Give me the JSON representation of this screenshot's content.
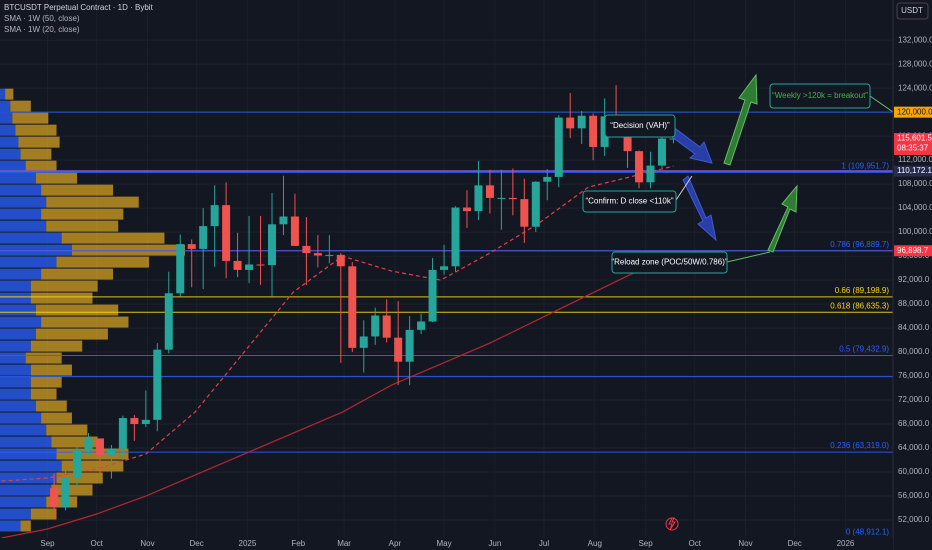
{
  "chart_data": {
    "type": "candlestick",
    "title": "BTCUSDT Perpetual Contract · 1D · Bybit",
    "currency": "USDT",
    "x": [
      4,
      11,
      18,
      25,
      32,
      39,
      46,
      53,
      60,
      67,
      74,
      81,
      88,
      95,
      102,
      109,
      116,
      123,
      130,
      137,
      144,
      151,
      158,
      165,
      172,
      179,
      186,
      193,
      200,
      207,
      214,
      221,
      228,
      235,
      242,
      249,
      256,
      263,
      270,
      277,
      284,
      291,
      298,
      305,
      312,
      319,
      326,
      333,
      340,
      347,
      354,
      361,
      368,
      375,
      382
    ],
    "open": [
      57300,
      54150,
      59100,
      63600,
      65600,
      62800,
      63900,
      69000,
      68000,
      68700,
      80400,
      89800,
      98000,
      97200,
      101000,
      104500,
      95200,
      93700,
      94600,
      94500,
      101300,
      102600,
      97700,
      96500,
      96100,
      96200,
      94300,
      80700,
      82600,
      86100,
      82400,
      78400,
      83700,
      85100,
      93700,
      94300,
      104100,
      103500,
      107800,
      105700,
      105700,
      105500,
      100900,
      108400,
      109200,
      119100,
      117300,
      119400,
      114200,
      119300,
      117400,
      113500,
      108300,
      111100,
      115600
    ],
    "high": [
      59800,
      60600,
      64100,
      66500,
      65600,
      64500,
      69400,
      69500,
      73600,
      81500,
      93400,
      99600,
      98800,
      104000,
      107800,
      108300,
      99900,
      102700,
      102700,
      106500,
      109400,
      106400,
      102500,
      99500,
      99500,
      96500,
      95000,
      85300,
      87400,
      88800,
      88500,
      86000,
      86400,
      95700,
      97900,
      104300,
      107000,
      111900,
      110400,
      110400,
      110600,
      108900,
      108500,
      110500,
      119500,
      123200,
      120200,
      119800,
      122300,
      124500,
      117600,
      113600,
      113400,
      116800,
      116000
    ],
    "low": [
      52550,
      53600,
      57500,
      62700,
      59800,
      58900,
      62000,
      65200,
      67500,
      66800,
      79800,
      89300,
      90800,
      90500,
      94200,
      92300,
      92500,
      91500,
      91200,
      89300,
      99500,
      97700,
      91200,
      94100,
      94800,
      78200,
      80000,
      76600,
      81200,
      81600,
      74500,
      74500,
      83000,
      85000,
      92900,
      93400,
      100700,
      102000,
      103100,
      100400,
      102800,
      98200,
      100000,
      105300,
      107500,
      115700,
      114700,
      112000,
      112700,
      116800,
      110700,
      107300,
      107300,
      110700,
      114800
    ],
    "close": [
      54150,
      59100,
      63600,
      65600,
      62800,
      63900,
      69000,
      68000,
      68700,
      80400,
      89800,
      98000,
      97200,
      101000,
      104500,
      95200,
      93700,
      94600,
      94500,
      101300,
      102600,
      97700,
      96500,
      96100,
      96200,
      94300,
      80700,
      82600,
      86100,
      82400,
      78400,
      83700,
      85100,
      93700,
      94300,
      104100,
      103500,
      107800,
      105700,
      105700,
      105500,
      100900,
      108400,
      109200,
      119100,
      117300,
      119400,
      114200,
      119300,
      117400,
      113500,
      108300,
      111100,
      115600,
      115601.5
    ],
    "up_color": "#26a69a",
    "down_color": "#ef5350",
    "indicators": [
      {
        "name": "SMA · 1W (50, close)",
        "color": "#b22833",
        "dash": false,
        "x": [
          -28,
          0,
          30,
          60,
          90,
          120,
          150,
          180,
          210,
          240,
          270,
          300,
          330,
          360,
          382
        ],
        "values": [
          49000,
          50500,
          53000,
          56000,
          59500,
          63000,
          66500,
          70000,
          74500,
          78000,
          81500,
          85500,
          89500,
          93500,
          96500
        ]
      },
      {
        "name": "SMA · 1W (20, close)",
        "color": "#e0404a",
        "dash": true,
        "x": [
          -28,
          0,
          30,
          60,
          90,
          120,
          150,
          180,
          210,
          240,
          270,
          300,
          330,
          360,
          382
        ],
        "values": [
          58500,
          59000,
          60500,
          63000,
          70000,
          80000,
          90000,
          96000,
          93500,
          92000,
          96500,
          101500,
          107500,
          109500,
          111000
        ]
      }
    ],
    "xlim": [
      -29,
      516
    ],
    "xticks": [
      {
        "value": 0,
        "label": "Sep"
      },
      {
        "value": 30,
        "label": "Oct"
      },
      {
        "value": 61,
        "label": "Nov"
      },
      {
        "value": 91,
        "label": "Dec"
      },
      {
        "value": 122,
        "label": "2025"
      },
      {
        "value": 153,
        "label": "Feb"
      },
      {
        "value": 181,
        "label": "Mar"
      },
      {
        "value": 212,
        "label": "Apr"
      },
      {
        "value": 242,
        "label": "May"
      },
      {
        "value": 273,
        "label": "Jun"
      },
      {
        "value": 303,
        "label": "Jul"
      },
      {
        "value": 334,
        "label": "Aug"
      },
      {
        "value": 365,
        "label": "Sep"
      },
      {
        "value": 395,
        "label": "Oct"
      },
      {
        "value": 426,
        "label": "Nov"
      },
      {
        "value": 456,
        "label": "Dec"
      },
      {
        "value": 487,
        "label": "2026"
      }
    ],
    "ylim": [
      49000,
      138700
    ],
    "yticks": [
      {
        "value": 52000,
        "label": "52,000.0"
      },
      {
        "value": 56000,
        "label": "56,000.0"
      },
      {
        "value": 60000,
        "label": "60,000.0"
      },
      {
        "value": 64000,
        "label": "64,000.0"
      },
      {
        "value": 68000,
        "label": "68,000.0"
      },
      {
        "value": 72000,
        "label": "72,000.0"
      },
      {
        "value": 76000,
        "label": "76,000.0"
      },
      {
        "value": 80000,
        "label": "80,000.0"
      },
      {
        "value": 84000,
        "label": "84,000.0"
      },
      {
        "value": 88000,
        "label": "88,000.0"
      },
      {
        "value": 92000,
        "label": "92,000.0"
      },
      {
        "value": 96000,
        "label": "96,000.0"
      },
      {
        "value": 100000,
        "label": "100,000.0"
      },
      {
        "value": 104000,
        "label": "104,000.0"
      },
      {
        "value": 108000,
        "label": "108,000.0"
      },
      {
        "value": 112000,
        "label": "112,000.0"
      },
      {
        "value": 116000,
        "label": "116,000.0"
      },
      {
        "value": 120000,
        "label": "120,000.0"
      },
      {
        "value": 124000,
        "label": "124,000.0"
      },
      {
        "value": 128000,
        "label": "128,000.0"
      },
      {
        "value": 132000,
        "label": "132,000.0"
      }
    ],
    "grid": true,
    "levels": [
      {
        "value": 120000,
        "color": "#2962ff"
      },
      {
        "value": 110172.1,
        "color": "#7e57c2"
      },
      {
        "value": 109951.7,
        "label": "1 (109,951.7)",
        "color": "#2962ff"
      },
      {
        "value": 96898.7,
        "color": "#f23645"
      },
      {
        "value": 96889.7,
        "label": "0.786 (96,889.7)",
        "color": "#2962ff"
      },
      {
        "value": 89198.9,
        "label": "0.66 (89,198.9)",
        "color": "#f5d90a"
      },
      {
        "value": 86635.3,
        "label": "0.618 (86,635.3)",
        "color": "#f5d90a"
      },
      {
        "value": 79432.9,
        "label": "0.5 (79,432.9)",
        "color": "#2962ff"
      },
      {
        "value": 75900,
        "color": "#2962ff"
      },
      {
        "value": 63319,
        "label": "0.236 (63,319.0)",
        "color": "#2962ff"
      },
      {
        "value": 48912.1,
        "label": "0 (48,912.1)",
        "color": "#2962ff"
      }
    ],
    "price_labels": [
      {
        "value": 120000,
        "label": "120,000.0",
        "color": "#f7a600"
      },
      {
        "value": 115601.5,
        "label": "115,601.5",
        "sub": "08:35:37",
        "color": "#f23645"
      },
      {
        "value": 110172.1,
        "label": "110,172.1",
        "color": "#262b4f"
      },
      {
        "value": 96898.7,
        "label": "96,898.7",
        "color": "#f23645"
      }
    ],
    "volume_profile": {
      "bins": [
        50000,
        52000,
        54000,
        56000,
        58000,
        60000,
        62000,
        64000,
        66000,
        68000,
        70000,
        72000,
        74000,
        76000,
        78000,
        80000,
        82000,
        84000,
        86000,
        88000,
        90000,
        92000,
        94000,
        96000,
        98000,
        100000,
        102000,
        104000,
        106000,
        108000,
        110000,
        112000,
        114000,
        116000,
        118000,
        120000,
        122000,
        124000
      ],
      "series": [
        {
          "color": "#2962ff",
          "values": [
            20,
            30,
            45,
            50,
            55,
            60,
            55,
            50,
            45,
            40,
            35,
            30,
            30,
            30,
            25,
            30,
            35,
            40,
            35,
            30,
            30,
            40,
            55,
            70,
            60,
            45,
            40,
            45,
            40,
            35,
            25,
            20,
            18,
            15,
            12,
            10,
            5
          ]
        },
        {
          "color": "#d4a021",
          "values": [
            10,
            25,
            30,
            40,
            45,
            60,
            70,
            45,
            40,
            30,
            30,
            25,
            30,
            40,
            35,
            50,
            70,
            85,
            80,
            60,
            65,
            70,
            90,
            110,
            100,
            70,
            80,
            90,
            70,
            40,
            30,
            30,
            40,
            40,
            35,
            20,
            8
          ]
        }
      ]
    },
    "annotations": [
      "“Weekly >120k = breakout”",
      "“Decision (VAH)”",
      "“Confirm: D close <110k”",
      "“Reload zone (POC/50W/0.786)”"
    ]
  }
}
